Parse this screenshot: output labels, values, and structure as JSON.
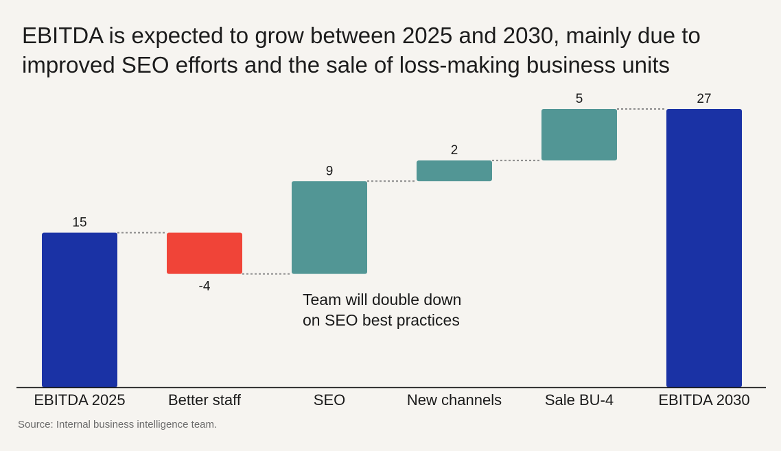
{
  "title_lines": [
    "EBITDA is expected to grow between 2025 and 2030, mainly due to",
    "improved SEO efforts and the sale of loss-making business units"
  ],
  "source": "Source: Internal business intelligence team.",
  "annotation_lines": [
    "Team will double down",
    "on SEO best practices"
  ],
  "colors": {
    "total": "#1a32a5",
    "increase": "#529695",
    "decrease": "#f04438",
    "connector": "#8a8a8a",
    "axis": "#1a1a1a",
    "background": "#f6f4f0"
  },
  "chart_data": {
    "type": "waterfall",
    "title": "EBITDA is expected to grow between 2025 and 2030, mainly due to improved SEO efforts and the sale of loss-making business units",
    "categories": [
      "EBITDA 2025",
      "Better staff",
      "SEO",
      "New channels",
      "Sale BU-4",
      "EBITDA 2030"
    ],
    "values": [
      15,
      -4,
      9,
      2,
      5,
      27
    ],
    "labels": [
      "15",
      "-4",
      "9",
      "2",
      "5",
      "27"
    ],
    "kinds": [
      "total",
      "decrease",
      "increase",
      "increase",
      "increase",
      "total"
    ],
    "ylim": [
      0,
      27
    ],
    "grid": false,
    "legend": "none"
  }
}
